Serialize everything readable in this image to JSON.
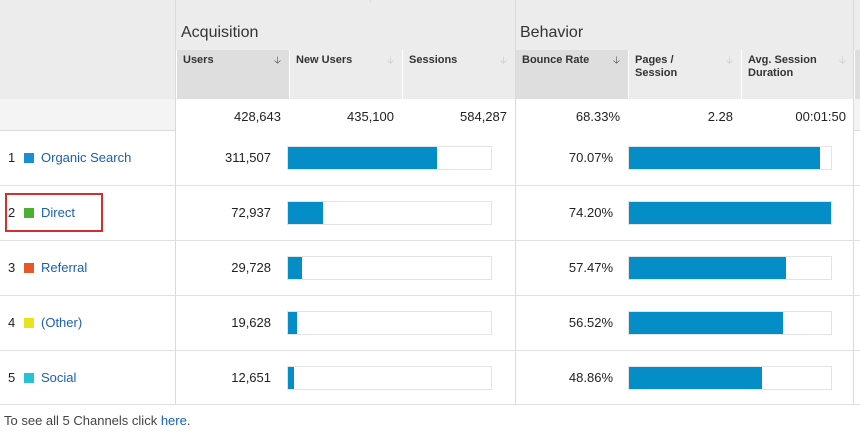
{
  "groups": {
    "acquisition": "Acquisition",
    "behavior": "Behavior"
  },
  "columns": {
    "users": "Users",
    "new_users": "New Users",
    "sessions": "Sessions",
    "bounce_rate": "Bounce Rate",
    "pages_session": "Pages / Session",
    "avg_duration": "Avg. Session Duration"
  },
  "icons": {
    "sort_active": "sort-desc-arrow-icon",
    "sort_inactive": "sort-arrow-icon"
  },
  "totals": {
    "users": "428,643",
    "new_users": "435,100",
    "sessions": "584,287",
    "bounce_rate": "68.33%",
    "pages_session": "2.28",
    "avg_duration": "00:01:50"
  },
  "rows": [
    {
      "num": "1",
      "channel": "Organic Search",
      "color": "#1a90d4",
      "users": "311,507",
      "users_bar": 0.735,
      "bounce_rate": "70.07%",
      "bounce_bar": 0.944
    },
    {
      "num": "2",
      "channel": "Direct",
      "color": "#4caf32",
      "users": "72,937",
      "users_bar": 0.172,
      "bounce_rate": "74.20%",
      "bounce_bar": 1.0
    },
    {
      "num": "3",
      "channel": "Referral",
      "color": "#e8572a",
      "users": "29,728",
      "users_bar": 0.07,
      "bounce_rate": "57.47%",
      "bounce_bar": 0.775
    },
    {
      "num": "4",
      "channel": "(Other)",
      "color": "#e8e41c",
      "users": "19,628",
      "users_bar": 0.046,
      "bounce_rate": "56.52%",
      "bounce_bar": 0.762
    },
    {
      "num": "5",
      "channel": "Social",
      "color": "#26c2d6",
      "users": "12,651",
      "users_bar": 0.03,
      "bounce_rate": "48.86%",
      "bounce_bar": 0.659
    }
  ],
  "footer": {
    "prefix": "To see all 5 Channels click",
    "link": "here",
    "suffix": "."
  }
}
